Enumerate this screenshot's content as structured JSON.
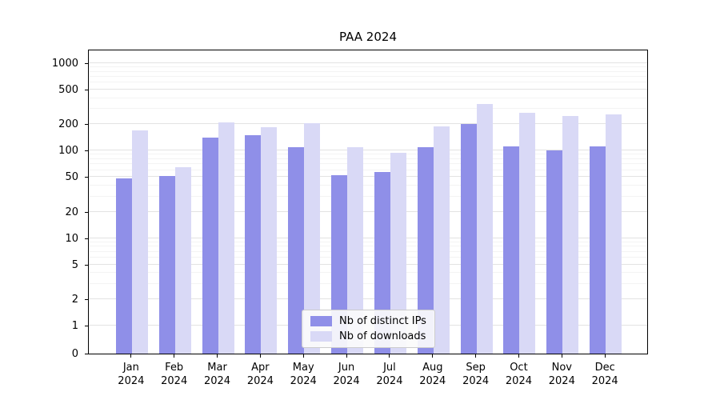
{
  "title": "PAA 2024",
  "chart_data": {
    "type": "bar",
    "title": "PAA 2024",
    "yscale": "symlog",
    "grid": true,
    "legend_position": "lower center",
    "categories": [
      "Jan\n2024",
      "Feb\n2024",
      "Mar\n2024",
      "Apr\n2024",
      "May\n2024",
      "Jun\n2024",
      "Jul\n2024",
      "Aug\n2024",
      "Sep\n2024",
      "Oct\n2024",
      "Nov\n2024",
      "Dec\n2024"
    ],
    "series": [
      {
        "name": "Nb of distinct IPs",
        "color": "#8f8fe8",
        "values": [
          48,
          51,
          140,
          150,
          110,
          52,
          57,
          110,
          200,
          112,
          100,
          112
        ]
      },
      {
        "name": "Nb of downloads",
        "color": "#d9d9f6",
        "values": [
          170,
          65,
          210,
          185,
          205,
          110,
          95,
          190,
          340,
          270,
          250,
          260
        ]
      }
    ],
    "yticks": [
      0,
      1,
      2,
      5,
      10,
      20,
      50,
      100,
      200,
      500,
      1000
    ],
    "yticks_minor": [
      3,
      4,
      6,
      7,
      8,
      9,
      30,
      40,
      60,
      70,
      80,
      90,
      300,
      400,
      600,
      700,
      800,
      900
    ],
    "ylim": [
      0,
      1500
    ],
    "xlabel": "",
    "ylabel": ""
  }
}
